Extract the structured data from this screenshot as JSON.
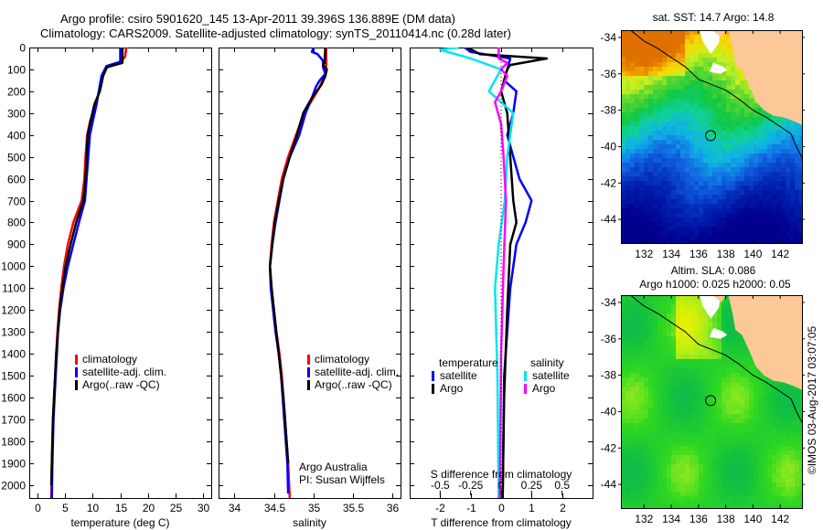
{
  "header": {
    "title_line1": "Argo profile: csiro 5901620_145 13-Apr-2011 39.396S 136.889E (DM data)",
    "title_line2": "Climatology: CARS2009. Satellite-adjusted climatology: synTS_20110414.nc (0.28d later)"
  },
  "colors": {
    "climatology": "#ff0000",
    "satellite": "#0000ff",
    "argo": "#000000",
    "sal_satellite": "#00e5ee",
    "sal_argo": "#ff00ff",
    "land": "#fcc898"
  },
  "chart_data": [
    {
      "id": "temperature",
      "type": "line",
      "xlabel": "temperature (deg C)",
      "ylabel": "",
      "xlim": [
        -1.5,
        31.5
      ],
      "ylim": [
        2060,
        0
      ],
      "xticks": [
        0,
        5,
        10,
        15,
        20,
        25,
        30
      ],
      "yticks": [
        0,
        100,
        200,
        300,
        400,
        500,
        600,
        700,
        800,
        900,
        1000,
        1100,
        1200,
        1300,
        1400,
        1500,
        1600,
        1700,
        1800,
        1900,
        2000
      ],
      "legend": [
        "climatology",
        "satellite-adj. clim.",
        "Argo(..raw -QC)"
      ],
      "legend_position": "middle-center",
      "series": [
        {
          "name": "climatology",
          "color": "#ff0000",
          "points": [
            [
              16.1,
              0
            ],
            [
              15.9,
              40
            ],
            [
              15,
              70
            ],
            [
              12.5,
              90
            ],
            [
              11.8,
              130
            ],
            [
              11.2,
              200
            ],
            [
              10.5,
              260
            ],
            [
              9.5,
              340
            ],
            [
              9.0,
              400
            ],
            [
              8.7,
              500
            ],
            [
              8.5,
              600
            ],
            [
              8.0,
              700
            ],
            [
              6.5,
              800
            ],
            [
              5.5,
              900
            ],
            [
              4.8,
              1000
            ],
            [
              4.3,
              1100
            ],
            [
              3.9,
              1200
            ],
            [
              3.6,
              1300
            ],
            [
              3.4,
              1400
            ],
            [
              3.2,
              1500
            ],
            [
              3.0,
              1600
            ],
            [
              2.8,
              1700
            ],
            [
              2.7,
              1800
            ],
            [
              2.6,
              1900
            ],
            [
              2.5,
              2060
            ]
          ]
        },
        {
          "name": "satellite-adj. clim.",
          "color": "#0000ff",
          "points": [
            [
              15,
              0
            ],
            [
              15,
              65
            ],
            [
              12.5,
              85
            ],
            [
              11.6,
              130
            ],
            [
              11.1,
              200
            ],
            [
              10.7,
              260
            ],
            [
              10.0,
              340
            ],
            [
              9.5,
              400
            ],
            [
              9.2,
              500
            ],
            [
              8.9,
              600
            ],
            [
              8.6,
              700
            ],
            [
              7.5,
              800
            ],
            [
              6.5,
              900
            ],
            [
              5.5,
              1000
            ],
            [
              4.7,
              1100
            ],
            [
              4.1,
              1200
            ],
            [
              3.7,
              1300
            ],
            [
              3.5,
              1400
            ],
            [
              3.3,
              1500
            ],
            [
              3.1,
              1600
            ],
            [
              2.9,
              1700
            ],
            [
              2.8,
              1800
            ],
            [
              2.7,
              1900
            ],
            [
              2.6,
              2060
            ]
          ]
        },
        {
          "name": "Argo(..raw -QC)",
          "color": "#000000",
          "points": [
            [
              15.4,
              0
            ],
            [
              15.4,
              70
            ],
            [
              12.6,
              90
            ],
            [
              11.9,
              130
            ],
            [
              11.3,
              200
            ],
            [
              10.3,
              260
            ],
            [
              9.6,
              340
            ],
            [
              9.1,
              400
            ],
            [
              8.9,
              500
            ],
            [
              8.7,
              600
            ],
            [
              8.3,
              700
            ],
            [
              7.0,
              800
            ],
            [
              6.0,
              900
            ],
            [
              5.1,
              1000
            ],
            [
              4.5,
              1100
            ],
            [
              4.0,
              1200
            ],
            [
              3.7,
              1300
            ],
            [
              3.4,
              1400
            ],
            [
              3.2,
              1500
            ],
            [
              3.0,
              1600
            ],
            [
              2.8,
              1700
            ],
            [
              2.7,
              1800
            ],
            [
              2.6,
              1900
            ],
            [
              2.5,
              2000
            ]
          ]
        }
      ]
    },
    {
      "id": "salinity",
      "type": "line",
      "xlabel": "salinity",
      "xlim": [
        33.8,
        36.1
      ],
      "ylim": [
        2060,
        0
      ],
      "xticks": [
        34,
        34.5,
        35,
        35.5,
        36
      ],
      "legend": [
        "climatology",
        "satellite-adj. clim.",
        "Argo(..raw -QC)"
      ],
      "legend_position": "middle-center",
      "annotation": [
        "Argo Australia",
        "PI: Susan Wijffels"
      ],
      "series": [
        {
          "name": "climatology",
          "color": "#ff0000",
          "points": [
            [
              35.16,
              0
            ],
            [
              35.16,
              80
            ],
            [
              35.15,
              120
            ],
            [
              35.08,
              180
            ],
            [
              35.0,
              230
            ],
            [
              34.88,
              300
            ],
            [
              34.78,
              400
            ],
            [
              34.68,
              500
            ],
            [
              34.6,
              600
            ],
            [
              34.55,
              700
            ],
            [
              34.5,
              800
            ],
            [
              34.47,
              900
            ],
            [
              34.45,
              1000
            ],
            [
              34.47,
              1100
            ],
            [
              34.5,
              1200
            ],
            [
              34.53,
              1300
            ],
            [
              34.57,
              1400
            ],
            [
              34.6,
              1500
            ],
            [
              34.62,
              1600
            ],
            [
              34.64,
              1700
            ],
            [
              34.66,
              1800
            ],
            [
              34.68,
              1900
            ],
            [
              34.7,
              2060
            ]
          ]
        },
        {
          "name": "satellite-adj. clim.",
          "color": "#0000ff",
          "points": [
            [
              35.0,
              0
            ],
            [
              34.98,
              20
            ],
            [
              35.05,
              30
            ],
            [
              35.12,
              60
            ],
            [
              35.12,
              90
            ],
            [
              35.15,
              120
            ],
            [
              35.08,
              150
            ],
            [
              35.03,
              180
            ],
            [
              34.98,
              230
            ],
            [
              34.9,
              300
            ],
            [
              34.82,
              400
            ],
            [
              34.7,
              500
            ],
            [
              34.62,
              600
            ],
            [
              34.57,
              700
            ],
            [
              34.52,
              800
            ],
            [
              34.48,
              900
            ],
            [
              34.45,
              1000
            ],
            [
              34.46,
              1100
            ],
            [
              34.49,
              1200
            ],
            [
              34.52,
              1300
            ],
            [
              34.56,
              1400
            ],
            [
              34.59,
              1500
            ],
            [
              34.61,
              1600
            ],
            [
              34.63,
              1700
            ],
            [
              34.65,
              1800
            ],
            [
              34.67,
              1900
            ],
            [
              34.68,
              2040
            ]
          ]
        },
        {
          "name": "Argo(..raw -QC)",
          "color": "#000000",
          "points": [
            [
              35.15,
              0
            ],
            [
              35.14,
              70
            ],
            [
              35.12,
              80
            ],
            [
              35.17,
              100
            ],
            [
              35.15,
              130
            ],
            [
              35.1,
              170
            ],
            [
              34.98,
              230
            ],
            [
              34.87,
              300
            ],
            [
              34.79,
              400
            ],
            [
              34.7,
              500
            ],
            [
              34.62,
              600
            ],
            [
              34.56,
              700
            ],
            [
              34.51,
              800
            ],
            [
              34.48,
              900
            ],
            [
              34.45,
              1000
            ],
            [
              34.47,
              1100
            ],
            [
              34.5,
              1200
            ],
            [
              34.53,
              1300
            ],
            [
              34.56,
              1400
            ],
            [
              34.59,
              1500
            ],
            [
              34.62,
              1600
            ],
            [
              34.64,
              1700
            ],
            [
              34.66,
              1800
            ],
            [
              34.68,
              1900
            ]
          ]
        }
      ]
    },
    {
      "id": "difference",
      "type": "line",
      "xlabel": "T difference from climatology",
      "xlabel_top": "S difference from climatology",
      "xlim": [
        -3,
        3
      ],
      "ylim": [
        2060,
        0
      ],
      "xticks": [
        -2,
        -1,
        0,
        1,
        2
      ],
      "xticks_s": [
        -0.5,
        -0.25,
        0,
        0.25,
        0.5
      ],
      "xticks_s_labels": [
        "-0.5",
        "-0.25",
        "0",
        "0.25",
        "0.5"
      ],
      "legend_headers": [
        "temperature",
        "salinity"
      ],
      "legend": [
        {
          "group": "temperature",
          "label": "satellite",
          "color": "#0000ff"
        },
        {
          "group": "temperature",
          "label": "Argo",
          "color": "#000000"
        },
        {
          "group": "salinity",
          "label": "satellite",
          "color": "#00e5ee"
        },
        {
          "group": "salinity",
          "label": "Argo",
          "color": "#ff00ff"
        }
      ],
      "series": [
        {
          "name": "T satellite",
          "color": "#0000ff",
          "points": [
            [
              -1.2,
              0
            ],
            [
              -1.0,
              20
            ],
            [
              0.3,
              50
            ],
            [
              0.2,
              100
            ],
            [
              0.1,
              150
            ],
            [
              0.5,
              200
            ],
            [
              0.4,
              300
            ],
            [
              0.2,
              400
            ],
            [
              0.6,
              600
            ],
            [
              1.0,
              700
            ],
            [
              0.8,
              800
            ],
            [
              0.5,
              900
            ],
            [
              0.3,
              1100
            ],
            [
              0.2,
              1300
            ],
            [
              0.1,
              1500
            ],
            [
              0.05,
              2060
            ]
          ]
        },
        {
          "name": "T Argo",
          "color": "#000000",
          "points": [
            [
              -1.1,
              0
            ],
            [
              -0.7,
              30
            ],
            [
              1.5,
              50
            ],
            [
              0.3,
              80
            ],
            [
              0.2,
              100
            ],
            [
              0.1,
              150
            ],
            [
              0.0,
              200
            ],
            [
              0.2,
              300
            ],
            [
              0.3,
              500
            ],
            [
              0.4,
              700
            ],
            [
              0.5,
              800
            ],
            [
              0.3,
              900
            ],
            [
              0.2,
              1200
            ],
            [
              0.1,
              1600
            ],
            [
              0.05,
              2060
            ]
          ]
        },
        {
          "name": "S satellite",
          "color": "#00e5ee",
          "points": [
            [
              -0.35,
              0
            ],
            [
              -0.5,
              10
            ],
            [
              -0.25,
              50
            ],
            [
              0.0,
              100
            ],
            [
              -0.05,
              150
            ],
            [
              -0.1,
              200
            ],
            [
              0.1,
              300
            ],
            [
              0.05,
              500
            ],
            [
              0.03,
              700
            ],
            [
              -0.02,
              900
            ],
            [
              -0.05,
              1100
            ],
            [
              -0.03,
              1500
            ],
            [
              -0.02,
              2060
            ]
          ]
        },
        {
          "name": "S Argo",
          "color": "#ff00ff",
          "points": [
            [
              -0.02,
              0
            ],
            [
              -0.02,
              50
            ],
            [
              0.05,
              70
            ],
            [
              0.0,
              100
            ],
            [
              0.05,
              130
            ],
            [
              0.0,
              200
            ],
            [
              -0.05,
              250
            ],
            [
              0.0,
              350
            ],
            [
              0.02,
              500
            ],
            [
              0.04,
              700
            ],
            [
              0.02,
              1000
            ],
            [
              0.0,
              1400
            ],
            [
              -0.01,
              2060
            ]
          ]
        }
      ]
    },
    {
      "id": "sst-map",
      "type": "heatmap",
      "title": "sat. SST: 14.7 Argo: 14.8",
      "xlim": [
        130.3,
        143.6
      ],
      "ylim": [
        -45.3,
        -33.6
      ],
      "xticks": [
        132,
        134,
        136,
        138,
        140,
        142
      ],
      "yticks": [
        -34,
        -36,
        -38,
        -40,
        -42,
        -44
      ],
      "marker": {
        "lon": 136.889,
        "lat": -39.396
      }
    },
    {
      "id": "sla-map",
      "type": "heatmap",
      "title_line1": "Altim. SLA: 0.086",
      "title_line2": "Argo h1000: 0.025 h2000: 0.05",
      "xlim": [
        130.3,
        143.6
      ],
      "ylim": [
        -45.3,
        -33.6
      ],
      "xticks": [
        132,
        134,
        136,
        138,
        140,
        142
      ],
      "yticks": [
        -34,
        -36,
        -38,
        -40,
        -42,
        -44
      ],
      "marker": {
        "lon": 136.889,
        "lat": -39.396
      }
    }
  ],
  "footer": {
    "credit": "©IMOS 03-Aug-2017 03:07:05"
  }
}
